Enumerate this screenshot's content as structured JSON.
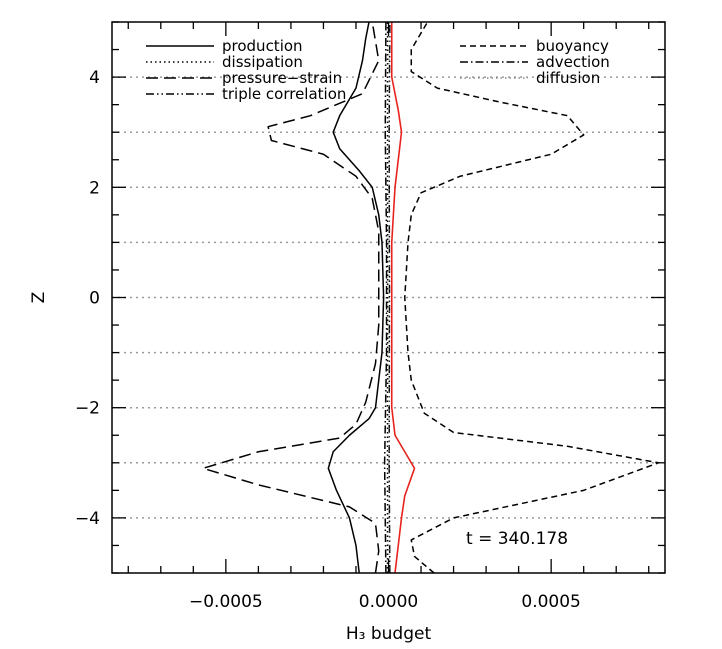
{
  "chart_data": {
    "type": "line",
    "title": "",
    "xlabel": "H₃ budget",
    "ylabel": "Z",
    "xlim": [
      -0.00085,
      0.00085
    ],
    "ylim": [
      -5,
      5
    ],
    "x_ticks": [
      {
        "value": -0.0005,
        "label": "−0.0005"
      },
      {
        "value": 0.0,
        "label": "0.0000"
      },
      {
        "value": 0.0005,
        "label": "0.0005"
      }
    ],
    "y_ticks": [
      {
        "value": -4,
        "label": "−4"
      },
      {
        "value": -2,
        "label": "−2"
      },
      {
        "value": 0,
        "label": "0"
      },
      {
        "value": 2,
        "label": "2"
      },
      {
        "value": 4,
        "label": "4"
      }
    ],
    "grid": "horizontal dotted grey lines at integer z",
    "reference_lines_z": [
      -4,
      -3,
      -2,
      -1,
      0,
      1,
      2,
      3,
      4
    ],
    "annotation": "t = 340.178",
    "legend_left": [
      {
        "label": "production",
        "style": "solid"
      },
      {
        "label": "dissipation",
        "style": "dotted"
      },
      {
        "label": "pressure−strain",
        "style": "long-dash"
      },
      {
        "label": "triple correlation",
        "style": "dash-dot-dot"
      }
    ],
    "legend_right": [
      {
        "label": "buoyancy",
        "style": "short-dash"
      },
      {
        "label": "advection",
        "style": "dash-dot"
      },
      {
        "label": "diffusion",
        "style": "dotted-grey"
      }
    ],
    "series": [
      {
        "name": "production",
        "style": "solid",
        "color": "#000000",
        "points": [
          [
            -9e-05,
            -5
          ],
          [
            -0.0001,
            -4.5
          ],
          [
            -0.00012,
            -4
          ],
          [
            -0.00016,
            -3.5
          ],
          [
            -0.000185,
            -3.1
          ],
          [
            -0.00017,
            -2.8
          ],
          [
            -0.00012,
            -2.5
          ],
          [
            -6e-05,
            -2.2
          ],
          [
            -4e-05,
            -2
          ],
          [
            -3e-05,
            -1.5
          ],
          [
            -2e-05,
            -1
          ],
          [
            -1.5e-05,
            0
          ],
          [
            -2e-05,
            1
          ],
          [
            -3e-05,
            1.5
          ],
          [
            -5e-05,
            2
          ],
          [
            -9e-05,
            2.3
          ],
          [
            -0.00015,
            2.7
          ],
          [
            -0.00017,
            3
          ],
          [
            -0.00015,
            3.3
          ],
          [
            -0.0001,
            3.8
          ],
          [
            -8e-05,
            4.3
          ],
          [
            -7e-05,
            4.7
          ],
          [
            -6e-05,
            5
          ]
        ]
      },
      {
        "name": "pressure−strain",
        "style": "long-dash",
        "color": "#000000",
        "points": [
          [
            -4e-05,
            -5
          ],
          [
            -3e-05,
            -4.6
          ],
          [
            -4e-05,
            -4.1
          ],
          [
            -0.00012,
            -3.8
          ],
          [
            -0.0004,
            -3.4
          ],
          [
            -0.00057,
            -3.1
          ],
          [
            -0.0004,
            -2.8
          ],
          [
            -0.00015,
            -2.55
          ],
          [
            -0.0001,
            -2.3
          ],
          [
            -7e-05,
            -1.9
          ],
          [
            -4e-05,
            -1.2
          ],
          [
            -3e-05,
            -0.5
          ],
          [
            -3e-05,
            0.5
          ],
          [
            -3e-05,
            1.2
          ],
          [
            -5e-05,
            1.8
          ],
          [
            -0.0001,
            2.2
          ],
          [
            -0.0002,
            2.6
          ],
          [
            -0.00036,
            2.85
          ],
          [
            -0.00037,
            3.1
          ],
          [
            -0.00024,
            3.3
          ],
          [
            -8e-05,
            3.7
          ],
          [
            -3e-05,
            4.3
          ],
          [
            -5e-05,
            5
          ]
        ]
      },
      {
        "name": "buoyancy",
        "style": "short-dash",
        "color": "#000000",
        "points": [
          [
            0.00014,
            -5
          ],
          [
            8e-05,
            -4.7
          ],
          [
            7e-05,
            -4.4
          ],
          [
            0.0002,
            -4
          ],
          [
            0.0006,
            -3.5
          ],
          [
            0.00083,
            -3
          ],
          [
            0.00055,
            -2.7
          ],
          [
            0.0002,
            -2.45
          ],
          [
            0.00011,
            -2.1
          ],
          [
            7e-05,
            -1.5
          ],
          [
            6e-05,
            -1
          ],
          [
            5e-05,
            0
          ],
          [
            6e-05,
            1
          ],
          [
            7e-05,
            1.5
          ],
          [
            0.0001,
            1.9
          ],
          [
            0.00022,
            2.2
          ],
          [
            0.0005,
            2.6
          ],
          [
            0.0006,
            2.95
          ],
          [
            0.00055,
            3.3
          ],
          [
            0.00034,
            3.55
          ],
          [
            0.00015,
            3.8
          ],
          [
            7e-05,
            4.1
          ],
          [
            7e-05,
            4.5
          ],
          [
            0.00011,
            4.9
          ],
          [
            0.00012,
            5
          ]
        ]
      },
      {
        "name": "advection",
        "style": "dash-dot",
        "color": "#000000",
        "points": [
          [
            -8e-06,
            -5
          ],
          [
            -1.2e-05,
            -3
          ],
          [
            -6e-06,
            -1
          ],
          [
            -6e-06,
            1
          ],
          [
            -1e-05,
            3
          ],
          [
            -8e-06,
            5
          ]
        ]
      },
      {
        "name": "triple correlation",
        "style": "dash-dot-dot",
        "color": "#000000",
        "points": [
          [
            4e-06,
            -5
          ],
          [
            2e-06,
            -3
          ],
          [
            3e-06,
            0
          ],
          [
            2e-06,
            3
          ],
          [
            4e-06,
            5
          ]
        ]
      },
      {
        "name": "dissipation",
        "style": "dotted",
        "color": "#000000",
        "points": [
          [
            -3e-06,
            -5
          ],
          [
            -3e-06,
            5
          ]
        ]
      },
      {
        "name": "diffusion",
        "style": "dotted-grey",
        "color": "#888888",
        "points": [
          [
            1e-06,
            -5
          ],
          [
            1e-06,
            5
          ]
        ]
      },
      {
        "name": "",
        "style": "solid",
        "color": "#e8231e",
        "points": [
          [
            2e-05,
            -5
          ],
          [
            3e-05,
            -4.5
          ],
          [
            4e-05,
            -4
          ],
          [
            5e-05,
            -3.6
          ],
          [
            8e-05,
            -3.1
          ],
          [
            5e-05,
            -2.8
          ],
          [
            2e-05,
            -2.5
          ],
          [
            1e-05,
            -2
          ],
          [
            1e-05,
            -1
          ],
          [
            1e-05,
            0
          ],
          [
            1e-05,
            1
          ],
          [
            2e-05,
            2
          ],
          [
            3e-05,
            2.5
          ],
          [
            4e-05,
            3
          ],
          [
            3e-05,
            3.4
          ],
          [
            1e-05,
            4
          ],
          [
            1e-05,
            5
          ]
        ]
      }
    ]
  }
}
